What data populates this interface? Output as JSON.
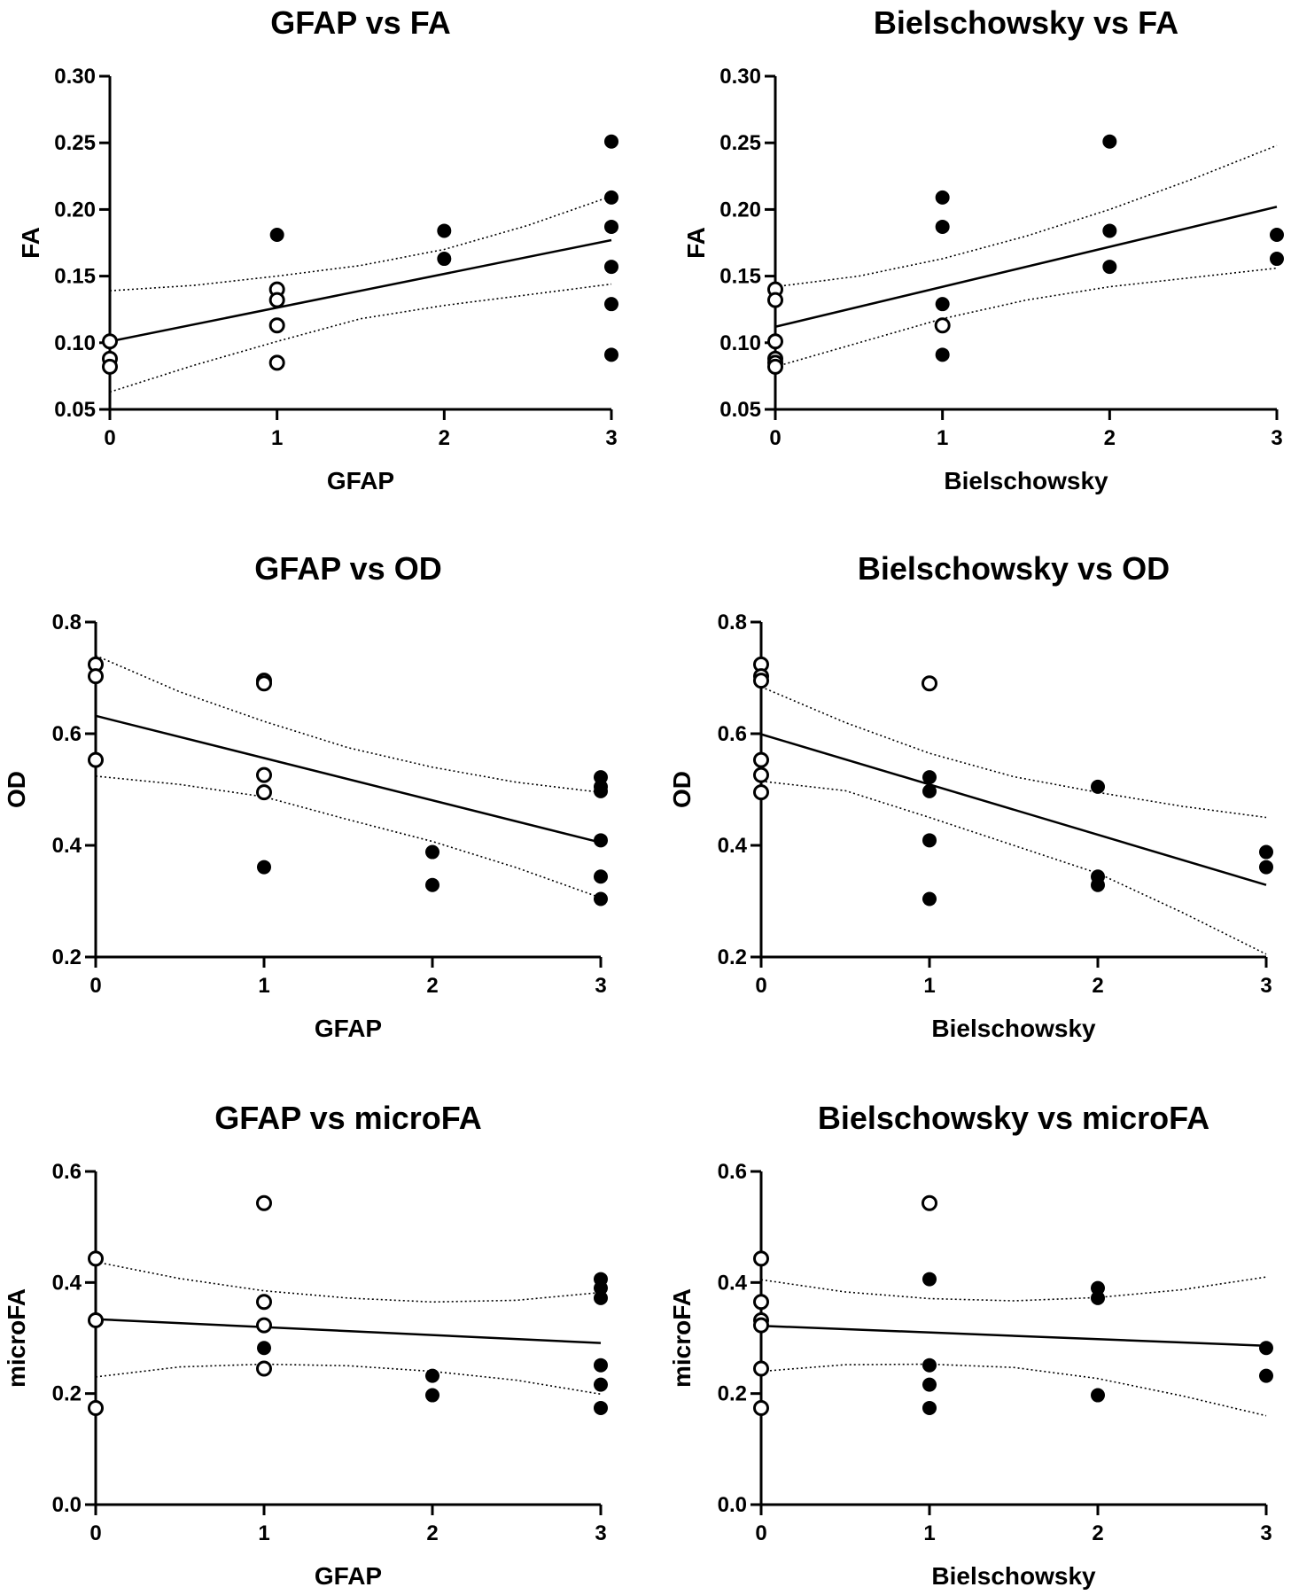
{
  "chart_data": [
    {
      "type": "scatter",
      "title": "GFAP vs FA",
      "xlabel": "GFAP",
      "ylabel": "FA",
      "xlim": [
        0,
        3
      ],
      "ylim": [
        0.05,
        0.3
      ],
      "xticks": [
        "0",
        "1",
        "2",
        "3"
      ],
      "yticks": [
        "0.05",
        "0.10",
        "0.15",
        "0.20",
        "0.25",
        "0.30"
      ],
      "open_points": [
        [
          0,
          0.101
        ],
        [
          0,
          0.088
        ],
        [
          0,
          0.082
        ],
        [
          1,
          0.14
        ],
        [
          1,
          0.132
        ],
        [
          1,
          0.113
        ],
        [
          1,
          0.085
        ]
      ],
      "filled_points": [
        [
          1,
          0.181
        ],
        [
          2,
          0.184
        ],
        [
          2,
          0.163
        ],
        [
          3,
          0.251
        ],
        [
          3,
          0.209
        ],
        [
          3,
          0.187
        ],
        [
          3,
          0.157
        ],
        [
          3,
          0.129
        ],
        [
          3,
          0.091
        ]
      ],
      "fit_line": [
        [
          0,
          0.101
        ],
        [
          3,
          0.177
        ]
      ],
      "ci_upper": [
        [
          0,
          0.139
        ],
        [
          0.5,
          0.143
        ],
        [
          1,
          0.15
        ],
        [
          1.5,
          0.158
        ],
        [
          2,
          0.17
        ],
        [
          2.5,
          0.188
        ],
        [
          3,
          0.21
        ]
      ],
      "ci_lower": [
        [
          0,
          0.063
        ],
        [
          0.5,
          0.083
        ],
        [
          1,
          0.101
        ],
        [
          1.5,
          0.118
        ],
        [
          2,
          0.128
        ],
        [
          2.5,
          0.136
        ],
        [
          3,
          0.144
        ]
      ]
    },
    {
      "type": "scatter",
      "title": "Bielschowsky vs FA",
      "xlabel": "Bielschowsky",
      "ylabel": "FA",
      "xlim": [
        0,
        3
      ],
      "ylim": [
        0.05,
        0.3
      ],
      "xticks": [
        "0",
        "1",
        "2",
        "3"
      ],
      "yticks": [
        "0.05",
        "0.10",
        "0.15",
        "0.20",
        "0.25",
        "0.30"
      ],
      "open_points": [
        [
          0,
          0.14
        ],
        [
          0,
          0.132
        ],
        [
          0,
          0.101
        ],
        [
          0,
          0.088
        ],
        [
          0,
          0.085
        ],
        [
          0,
          0.082
        ],
        [
          1,
          0.113
        ]
      ],
      "filled_points": [
        [
          1,
          0.209
        ],
        [
          1,
          0.187
        ],
        [
          1,
          0.129
        ],
        [
          1,
          0.091
        ],
        [
          2,
          0.251
        ],
        [
          2,
          0.184
        ],
        [
          2,
          0.157
        ],
        [
          3,
          0.181
        ],
        [
          3,
          0.163
        ]
      ],
      "fit_line": [
        [
          0,
          0.112
        ],
        [
          3,
          0.202
        ]
      ],
      "ci_upper": [
        [
          0,
          0.142
        ],
        [
          0.5,
          0.15
        ],
        [
          1,
          0.163
        ],
        [
          1.5,
          0.18
        ],
        [
          2,
          0.2
        ],
        [
          2.5,
          0.223
        ],
        [
          3,
          0.248
        ]
      ],
      "ci_lower": [
        [
          0,
          0.082
        ],
        [
          0.5,
          0.1
        ],
        [
          1,
          0.118
        ],
        [
          1.5,
          0.132
        ],
        [
          2,
          0.142
        ],
        [
          2.5,
          0.149
        ],
        [
          3,
          0.156
        ]
      ]
    },
    {
      "type": "scatter",
      "title": "GFAP vs OD",
      "xlabel": "GFAP",
      "ylabel": "OD",
      "xlim": [
        0,
        3
      ],
      "ylim": [
        0.2,
        0.8
      ],
      "xticks": [
        "0",
        "1",
        "2",
        "3"
      ],
      "yticks": [
        "0.2",
        "0.4",
        "0.6",
        "0.8"
      ],
      "open_points": [
        [
          0,
          0.724
        ],
        [
          0,
          0.703
        ],
        [
          0,
          0.553
        ],
        [
          1,
          0.695
        ],
        [
          1,
          0.69
        ],
        [
          1,
          0.526
        ],
        [
          1,
          0.495
        ]
      ],
      "filled_points": [
        [
          1,
          0.361
        ],
        [
          2,
          0.388
        ],
        [
          2,
          0.329
        ],
        [
          3,
          0.522
        ],
        [
          3,
          0.505
        ],
        [
          3,
          0.497
        ],
        [
          3,
          0.409
        ],
        [
          3,
          0.344
        ],
        [
          3,
          0.304
        ]
      ],
      "fit_line": [
        [
          0,
          0.632
        ],
        [
          3,
          0.405
        ]
      ],
      "ci_upper": [
        [
          0,
          0.74
        ],
        [
          0.5,
          0.675
        ],
        [
          1,
          0.622
        ],
        [
          1.5,
          0.575
        ],
        [
          2,
          0.54
        ],
        [
          2.5,
          0.513
        ],
        [
          3,
          0.495
        ]
      ],
      "ci_lower": [
        [
          0,
          0.524
        ],
        [
          0.5,
          0.509
        ],
        [
          1,
          0.487
        ],
        [
          1.5,
          0.446
        ],
        [
          2,
          0.407
        ],
        [
          2.5,
          0.36
        ],
        [
          3,
          0.306
        ]
      ]
    },
    {
      "type": "scatter",
      "title": "Bielschowsky vs OD",
      "xlabel": "Bielschowsky",
      "ylabel": "OD",
      "xlim": [
        0,
        3
      ],
      "ylim": [
        0.2,
        0.8
      ],
      "xticks": [
        "0",
        "1",
        "2",
        "3"
      ],
      "yticks": [
        "0.2",
        "0.4",
        "0.6",
        "0.8"
      ],
      "open_points": [
        [
          0,
          0.724
        ],
        [
          0,
          0.703
        ],
        [
          0,
          0.695
        ],
        [
          0,
          0.553
        ],
        [
          0,
          0.526
        ],
        [
          0,
          0.495
        ],
        [
          1,
          0.69
        ]
      ],
      "filled_points": [
        [
          1,
          0.522
        ],
        [
          1,
          0.497
        ],
        [
          1,
          0.409
        ],
        [
          1,
          0.304
        ],
        [
          2,
          0.505
        ],
        [
          2,
          0.344
        ],
        [
          2,
          0.329
        ],
        [
          3,
          0.388
        ],
        [
          3,
          0.361
        ]
      ],
      "fit_line": [
        [
          0,
          0.599
        ],
        [
          3,
          0.329
        ]
      ],
      "ci_upper": [
        [
          0,
          0.684
        ],
        [
          0.5,
          0.62
        ],
        [
          1,
          0.565
        ],
        [
          1.5,
          0.523
        ],
        [
          2,
          0.495
        ],
        [
          2.5,
          0.47
        ],
        [
          3,
          0.45
        ]
      ],
      "ci_lower": [
        [
          0,
          0.515
        ],
        [
          0.5,
          0.498
        ],
        [
          1,
          0.45
        ],
        [
          1.5,
          0.4
        ],
        [
          2,
          0.35
        ],
        [
          2.5,
          0.28
        ],
        [
          3,
          0.205
        ]
      ]
    },
    {
      "type": "scatter",
      "title": "GFAP vs microFA",
      "xlabel": "GFAP",
      "ylabel": "microFA",
      "xlim": [
        0,
        3
      ],
      "ylim": [
        0.0,
        0.6
      ],
      "xticks": [
        "0",
        "1",
        "2",
        "3"
      ],
      "yticks": [
        "0.0",
        "0.2",
        "0.4",
        "0.6"
      ],
      "open_points": [
        [
          0,
          0.443
        ],
        [
          0,
          0.332
        ],
        [
          0,
          0.174
        ],
        [
          1,
          0.543
        ],
        [
          1,
          0.365
        ],
        [
          1,
          0.323
        ],
        [
          1,
          0.245
        ]
      ],
      "filled_points": [
        [
          1,
          0.282
        ],
        [
          2,
          0.232
        ],
        [
          2,
          0.197
        ],
        [
          3,
          0.406
        ],
        [
          3,
          0.39
        ],
        [
          3,
          0.372
        ],
        [
          3,
          0.251
        ],
        [
          3,
          0.216
        ],
        [
          3,
          0.174
        ]
      ],
      "fit_line": [
        [
          0,
          0.334
        ],
        [
          3,
          0.291
        ]
      ],
      "ci_upper": [
        [
          0,
          0.437
        ],
        [
          0.5,
          0.407
        ],
        [
          1,
          0.385
        ],
        [
          1.5,
          0.372
        ],
        [
          2,
          0.365
        ],
        [
          2.5,
          0.368
        ],
        [
          3,
          0.382
        ]
      ],
      "ci_lower": [
        [
          0,
          0.23
        ],
        [
          0.5,
          0.248
        ],
        [
          1,
          0.253
        ],
        [
          1.5,
          0.25
        ],
        [
          2,
          0.24
        ],
        [
          2.5,
          0.224
        ],
        [
          3,
          0.199
        ]
      ]
    },
    {
      "type": "scatter",
      "title": "Bielschowsky vs microFA",
      "xlabel": "Bielschowsky",
      "ylabel": "microFA",
      "xlim": [
        0,
        3
      ],
      "ylim": [
        0.0,
        0.6
      ],
      "xticks": [
        "0",
        "1",
        "2",
        "3"
      ],
      "yticks": [
        "0.0",
        "0.2",
        "0.4",
        "0.6"
      ],
      "open_points": [
        [
          0,
          0.443
        ],
        [
          0,
          0.365
        ],
        [
          0,
          0.332
        ],
        [
          0,
          0.323
        ],
        [
          0,
          0.245
        ],
        [
          0,
          0.174
        ],
        [
          1,
          0.543
        ]
      ],
      "filled_points": [
        [
          1,
          0.406
        ],
        [
          1,
          0.251
        ],
        [
          1,
          0.216
        ],
        [
          1,
          0.174
        ],
        [
          2,
          0.39
        ],
        [
          2,
          0.372
        ],
        [
          2,
          0.197
        ],
        [
          3,
          0.282
        ],
        [
          3,
          0.232
        ]
      ],
      "fit_line": [
        [
          0,
          0.322
        ],
        [
          3,
          0.286
        ]
      ],
      "ci_upper": [
        [
          0,
          0.405
        ],
        [
          0.5,
          0.383
        ],
        [
          1,
          0.371
        ],
        [
          1.5,
          0.367
        ],
        [
          2,
          0.373
        ],
        [
          2.5,
          0.387
        ],
        [
          3,
          0.41
        ]
      ],
      "ci_lower": [
        [
          0,
          0.24
        ],
        [
          0.5,
          0.252
        ],
        [
          1,
          0.253
        ],
        [
          1.5,
          0.247
        ],
        [
          2,
          0.227
        ],
        [
          2.5,
          0.196
        ],
        [
          3,
          0.16
        ]
      ]
    }
  ]
}
